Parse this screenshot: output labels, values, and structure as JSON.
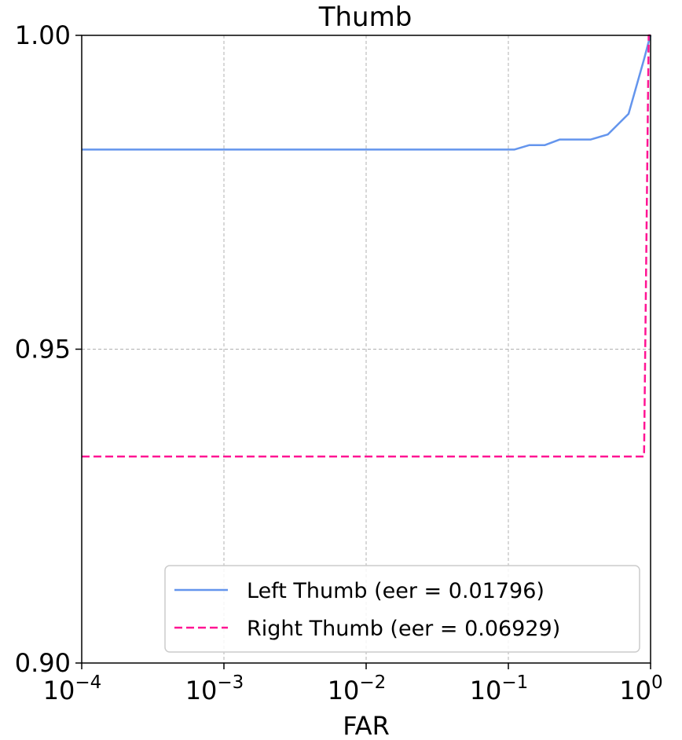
{
  "chart_data": {
    "type": "line",
    "title": "Thumb",
    "xlabel": "FAR",
    "ylabel": "",
    "xscale": "log",
    "xlim": [
      0.0001,
      1
    ],
    "ylim": [
      0.9,
      1.0
    ],
    "grid": true,
    "legend_position": "lower-right",
    "x_ticks": [
      {
        "value": 0.0001,
        "base": "10",
        "exp": "−4"
      },
      {
        "value": 0.001,
        "base": "10",
        "exp": "−3"
      },
      {
        "value": 0.01,
        "base": "10",
        "exp": "−2"
      },
      {
        "value": 0.1,
        "base": "10",
        "exp": "−1"
      },
      {
        "value": 1,
        "base": "10",
        "exp": "0"
      }
    ],
    "y_ticks": [
      {
        "value": 0.9,
        "label": "0.90"
      },
      {
        "value": 0.95,
        "label": "0.95"
      },
      {
        "value": 1.0,
        "label": "1.00"
      }
    ],
    "series": [
      {
        "name": "Left Thumb (eer = 0.01796)",
        "color": "#6495ed",
        "style": "solid",
        "x": [
          0.0001,
          0.11,
          0.14,
          0.18,
          0.23,
          0.3,
          0.38,
          0.5,
          0.7,
          0.9,
          0.97,
          1.0
        ],
        "y": [
          0.9818,
          0.9818,
          0.9825,
          0.9825,
          0.9834,
          0.9834,
          0.9834,
          0.9842,
          0.9875,
          0.9962,
          0.999,
          1.0
        ]
      },
      {
        "name": "Right Thumb (eer = 0.06929)",
        "color": "#ff1493",
        "style": "dashed",
        "x": [
          0.0001,
          0.89,
          0.9,
          0.97,
          1.0
        ],
        "y": [
          0.9329,
          0.9329,
          0.9329,
          1.0,
          1.0
        ]
      }
    ]
  }
}
